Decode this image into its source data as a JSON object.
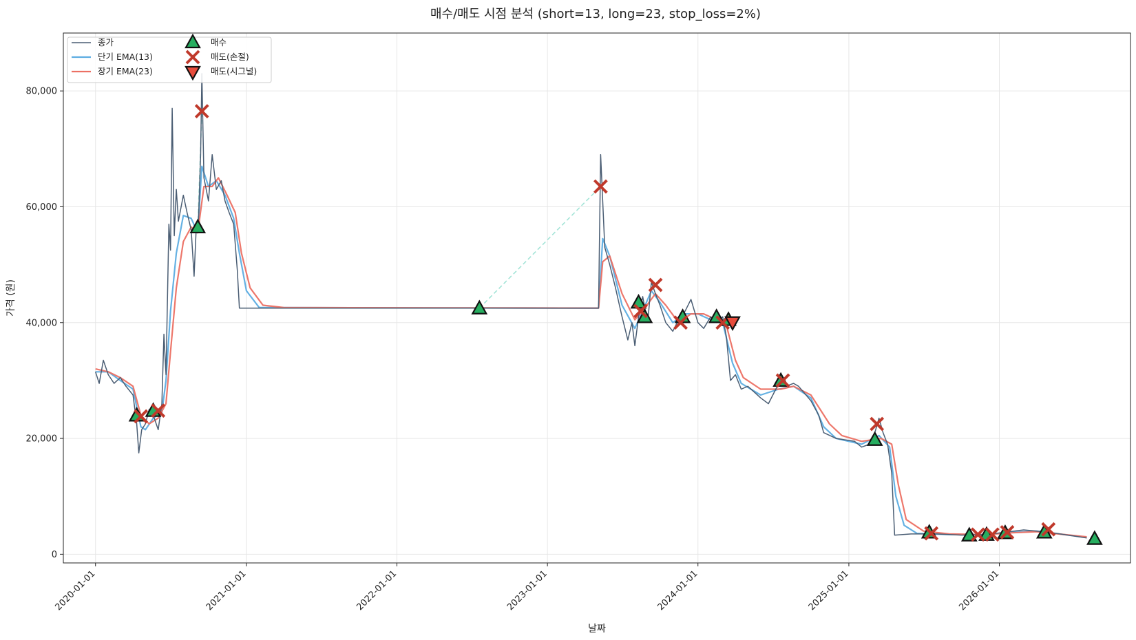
{
  "chart_data": {
    "type": "line",
    "title": "매수/매도 시점 분석 (short=13, long=23, stop_loss=2%)",
    "xlabel": "날짜",
    "ylabel": "가격 (원)",
    "x_range": [
      "2019-10-15",
      "2026-11-15"
    ],
    "ylim": [
      -1500,
      90000
    ],
    "y_ticks": [
      0,
      20000,
      40000,
      60000,
      80000
    ],
    "y_tick_labels": [
      "0",
      "20,000",
      "40,000",
      "60,000",
      "80,000"
    ],
    "x_ticks": [
      "2020-01-01",
      "2021-01-01",
      "2022-01-01",
      "2023-01-01",
      "2024-01-01",
      "2025-01-01",
      "2026-01-01"
    ],
    "grid": true,
    "legend_position": "top-left",
    "colors": {
      "close": "#4a5d73",
      "ema_short": "#5dade2",
      "ema_long": "#ec7063",
      "buy": "#27ae60",
      "sell_stop": "#c0392b",
      "sell_signal": "#e74c3c",
      "trade_line": "#a3e4d7"
    },
    "legend": [
      {
        "key": "close",
        "label": "종가"
      },
      {
        "key": "ema_short",
        "label": "단기 EMA(13)"
      },
      {
        "key": "ema_long",
        "label": "장기 EMA(23)"
      },
      {
        "key": "buy",
        "label": "매수"
      },
      {
        "key": "sell_stop",
        "label": "매도(손절)"
      },
      {
        "key": "sell_signal",
        "label": "매도(시그널)"
      }
    ],
    "series": [
      {
        "name": "종가",
        "points": [
          [
            "2020-01-01",
            31500
          ],
          [
            "2020-01-10",
            29500
          ],
          [
            "2020-01-20",
            33500
          ],
          [
            "2020-02-01",
            31000
          ],
          [
            "2020-02-15",
            29500
          ],
          [
            "2020-03-01",
            30500
          ],
          [
            "2020-03-15",
            29000
          ],
          [
            "2020-04-01",
            27500
          ],
          [
            "2020-04-10",
            22500
          ],
          [
            "2020-04-15",
            17500
          ],
          [
            "2020-04-22",
            21500
          ],
          [
            "2020-05-01",
            22500
          ],
          [
            "2020-05-10",
            25000
          ],
          [
            "2020-05-20",
            24000
          ],
          [
            "2020-06-01",
            21500
          ],
          [
            "2020-06-10",
            26000
          ],
          [
            "2020-06-15",
            38000
          ],
          [
            "2020-06-20",
            31000
          ],
          [
            "2020-06-27",
            57000
          ],
          [
            "2020-07-01",
            52500
          ],
          [
            "2020-07-05",
            77000
          ],
          [
            "2020-07-10",
            55000
          ],
          [
            "2020-07-15",
            63000
          ],
          [
            "2020-07-20",
            57500
          ],
          [
            "2020-08-01",
            62000
          ],
          [
            "2020-08-10",
            59000
          ],
          [
            "2020-08-20",
            56000
          ],
          [
            "2020-08-27",
            48000
          ],
          [
            "2020-09-01",
            56000
          ],
          [
            "2020-09-07",
            58000
          ],
          [
            "2020-09-12",
            69000
          ],
          [
            "2020-09-15",
            83000
          ],
          [
            "2020-09-20",
            65000
          ],
          [
            "2020-10-01",
            61000
          ],
          [
            "2020-10-10",
            69000
          ],
          [
            "2020-10-20",
            63000
          ],
          [
            "2020-11-01",
            64500
          ],
          [
            "2020-11-10",
            61000
          ],
          [
            "2020-11-20",
            59000
          ],
          [
            "2020-12-01",
            57000
          ],
          [
            "2020-12-10",
            49000
          ],
          [
            "2020-12-15",
            42500
          ],
          [
            "2023-05-05",
            42500
          ],
          [
            "2023-05-10",
            69000
          ],
          [
            "2023-05-20",
            53000
          ],
          [
            "2023-06-01",
            50000
          ],
          [
            "2023-06-15",
            46000
          ],
          [
            "2023-07-01",
            41000
          ],
          [
            "2023-07-15",
            37000
          ],
          [
            "2023-07-25",
            40000
          ],
          [
            "2023-08-01",
            36000
          ],
          [
            "2023-08-10",
            41000
          ],
          [
            "2023-08-20",
            44500
          ],
          [
            "2023-09-01",
            40000
          ],
          [
            "2023-09-10",
            47000
          ],
          [
            "2023-09-20",
            45000
          ],
          [
            "2023-10-01",
            43000
          ],
          [
            "2023-10-15",
            40000
          ],
          [
            "2023-11-01",
            38500
          ],
          [
            "2023-11-15",
            40500
          ],
          [
            "2023-12-01",
            42000
          ],
          [
            "2023-12-15",
            44000
          ],
          [
            "2024-01-01",
            40000
          ],
          [
            "2024-01-15",
            39000
          ],
          [
            "2024-02-01",
            41000
          ],
          [
            "2024-02-15",
            40000
          ],
          [
            "2024-03-01",
            41000
          ],
          [
            "2024-03-10",
            37500
          ],
          [
            "2024-03-20",
            30000
          ],
          [
            "2024-04-01",
            31000
          ],
          [
            "2024-04-15",
            28500
          ],
          [
            "2024-05-01",
            29000
          ],
          [
            "2024-06-01",
            27000
          ],
          [
            "2024-06-20",
            26000
          ],
          [
            "2024-07-15",
            29500
          ],
          [
            "2024-08-01",
            29000
          ],
          [
            "2024-08-20",
            29500
          ],
          [
            "2024-09-01",
            29000
          ],
          [
            "2024-10-01",
            26500
          ],
          [
            "2024-10-20",
            24000
          ],
          [
            "2024-11-01",
            21000
          ],
          [
            "2024-12-01",
            20000
          ],
          [
            "2025-01-15",
            19500
          ],
          [
            "2025-02-01",
            18500
          ],
          [
            "2025-02-20",
            19000
          ],
          [
            "2025-03-01",
            20000
          ],
          [
            "2025-03-15",
            23500
          ],
          [
            "2025-03-25",
            21000
          ],
          [
            "2025-04-05",
            19000
          ],
          [
            "2025-04-15",
            14000
          ],
          [
            "2025-04-22",
            3300
          ],
          [
            "2025-06-01",
            3500
          ],
          [
            "2025-08-01",
            3500
          ],
          [
            "2025-10-01",
            3300
          ],
          [
            "2025-12-01",
            3400
          ],
          [
            "2026-01-15",
            3800
          ],
          [
            "2026-03-01",
            4200
          ],
          [
            "2026-05-01",
            3800
          ],
          [
            "2026-08-01",
            2800
          ]
        ]
      },
      {
        "name": "단기 EMA(13)",
        "points": [
          [
            "2020-01-01",
            31500
          ],
          [
            "2020-02-01",
            31500
          ],
          [
            "2020-03-01",
            30000
          ],
          [
            "2020-04-01",
            28500
          ],
          [
            "2020-04-20",
            22000
          ],
          [
            "2020-05-01",
            21500
          ],
          [
            "2020-05-20",
            23500
          ],
          [
            "2020-06-10",
            24500
          ],
          [
            "2020-06-20",
            30000
          ],
          [
            "2020-07-01",
            42000
          ],
          [
            "2020-07-15",
            52000
          ],
          [
            "2020-08-01",
            58500
          ],
          [
            "2020-08-20",
            58000
          ],
          [
            "2020-09-05",
            55500
          ],
          [
            "2020-09-15",
            67000
          ],
          [
            "2020-10-01",
            63500
          ],
          [
            "2020-10-20",
            64500
          ],
          [
            "2020-11-10",
            62000
          ],
          [
            "2020-12-01",
            58000
          ],
          [
            "2020-12-15",
            52000
          ],
          [
            "2021-01-01",
            45500
          ],
          [
            "2021-02-01",
            42600
          ],
          [
            "2023-05-05",
            42500
          ],
          [
            "2023-05-15",
            54500
          ],
          [
            "2023-06-01",
            51500
          ],
          [
            "2023-07-01",
            43000
          ],
          [
            "2023-08-01",
            39000
          ],
          [
            "2023-08-20",
            42000
          ],
          [
            "2023-09-10",
            45500
          ],
          [
            "2023-10-01",
            43500
          ],
          [
            "2023-11-01",
            40000
          ],
          [
            "2023-12-01",
            41500
          ],
          [
            "2024-01-01",
            41500
          ],
          [
            "2024-02-01",
            40500
          ],
          [
            "2024-03-01",
            40000
          ],
          [
            "2024-03-25",
            33000
          ],
          [
            "2024-04-15",
            29500
          ],
          [
            "2024-06-01",
            27500
          ],
          [
            "2024-07-15",
            28500
          ],
          [
            "2024-08-20",
            29000
          ],
          [
            "2024-10-01",
            27000
          ],
          [
            "2024-11-01",
            22000
          ],
          [
            "2024-12-01",
            20000
          ],
          [
            "2025-02-01",
            19000
          ],
          [
            "2025-03-15",
            20500
          ],
          [
            "2025-04-10",
            18500
          ],
          [
            "2025-04-25",
            10000
          ],
          [
            "2025-05-15",
            5000
          ],
          [
            "2025-06-15",
            3600
          ],
          [
            "2025-09-01",
            3400
          ],
          [
            "2025-12-01",
            3400
          ],
          [
            "2026-02-01",
            3800
          ],
          [
            "2026-04-01",
            4000
          ],
          [
            "2026-08-01",
            2900
          ]
        ]
      },
      {
        "name": "장기 EMA(23)",
        "points": [
          [
            "2020-01-01",
            32000
          ],
          [
            "2020-02-01",
            31500
          ],
          [
            "2020-03-01",
            30500
          ],
          [
            "2020-04-01",
            29000
          ],
          [
            "2020-04-20",
            24000
          ],
          [
            "2020-05-10",
            22500
          ],
          [
            "2020-06-01",
            23500
          ],
          [
            "2020-06-20",
            26000
          ],
          [
            "2020-07-01",
            35000
          ],
          [
            "2020-07-15",
            46000
          ],
          [
            "2020-08-01",
            54000
          ],
          [
            "2020-08-20",
            56500
          ],
          [
            "2020-09-05",
            55500
          ],
          [
            "2020-09-20",
            63500
          ],
          [
            "2020-10-10",
            63500
          ],
          [
            "2020-10-25",
            65000
          ],
          [
            "2020-11-15",
            62000
          ],
          [
            "2020-12-05",
            59000
          ],
          [
            "2020-12-20",
            52000
          ],
          [
            "2021-01-10",
            46000
          ],
          [
            "2021-02-10",
            43000
          ],
          [
            "2021-04-01",
            42600
          ],
          [
            "2023-05-05",
            42500
          ],
          [
            "2023-05-15",
            50500
          ],
          [
            "2023-06-01",
            51500
          ],
          [
            "2023-07-01",
            45000
          ],
          [
            "2023-08-01",
            40500
          ],
          [
            "2023-08-20",
            42000
          ],
          [
            "2023-09-20",
            45000
          ],
          [
            "2023-10-15",
            43000
          ],
          [
            "2023-11-15",
            40000
          ],
          [
            "2023-12-15",
            41500
          ],
          [
            "2024-01-15",
            41500
          ],
          [
            "2024-02-15",
            40500
          ],
          [
            "2024-03-10",
            39500
          ],
          [
            "2024-04-01",
            33500
          ],
          [
            "2024-04-20",
            30500
          ],
          [
            "2024-06-01",
            28500
          ],
          [
            "2024-07-20",
            28500
          ],
          [
            "2024-08-20",
            29000
          ],
          [
            "2024-10-01",
            27500
          ],
          [
            "2024-11-15",
            22500
          ],
          [
            "2024-12-15",
            20500
          ],
          [
            "2025-02-01",
            19500
          ],
          [
            "2025-03-20",
            20000
          ],
          [
            "2025-04-15",
            19000
          ],
          [
            "2025-05-01",
            12000
          ],
          [
            "2025-05-20",
            6000
          ],
          [
            "2025-07-01",
            4000
          ],
          [
            "2025-09-01",
            3500
          ],
          [
            "2025-12-01",
            3400
          ],
          [
            "2026-02-01",
            3700
          ],
          [
            "2026-04-01",
            3900
          ],
          [
            "2026-08-01",
            3000
          ]
        ]
      }
    ],
    "buy_points": [
      [
        "2020-04-10",
        24000
      ],
      [
        "2020-05-20",
        24800
      ],
      [
        "2020-09-05",
        56500
      ],
      [
        "2022-07-20",
        42500
      ],
      [
        "2023-08-10",
        43500
      ],
      [
        "2023-08-25",
        41000
      ],
      [
        "2023-11-25",
        41000
      ],
      [
        "2024-02-15",
        41000
      ],
      [
        "2024-03-15",
        40500
      ],
      [
        "2024-07-20",
        30000
      ],
      [
        "2025-03-05",
        19800
      ],
      [
        "2025-07-15",
        3800
      ],
      [
        "2025-10-20",
        3300
      ],
      [
        "2025-12-01",
        3400
      ],
      [
        "2026-01-15",
        3700
      ],
      [
        "2026-04-20",
        3800
      ],
      [
        "2026-08-20",
        2700
      ]
    ],
    "sell_stop_points": [
      [
        "2020-04-20",
        23800
      ],
      [
        "2020-06-01",
        24800
      ],
      [
        "2020-09-15",
        76500
      ],
      [
        "2023-05-10",
        63500
      ],
      [
        "2023-08-15",
        42000
      ],
      [
        "2023-09-20",
        46500
      ],
      [
        "2023-11-20",
        40000
      ],
      [
        "2024-03-01",
        40000
      ],
      [
        "2024-07-25",
        30000
      ],
      [
        "2025-03-10",
        22500
      ],
      [
        "2025-07-20",
        3600
      ],
      [
        "2025-11-10",
        3400
      ],
      [
        "2025-12-15",
        3400
      ],
      [
        "2026-01-20",
        3800
      ],
      [
        "2026-04-30",
        4300
      ]
    ],
    "sell_signal_points": [
      [
        "2024-03-25",
        40000
      ]
    ],
    "trade_lines": [
      [
        [
          "2020-09-05",
          56500
        ],
        [
          "2020-09-15",
          76500
        ]
      ],
      [
        [
          "2022-07-20",
          42500
        ],
        [
          "2023-05-10",
          63500
        ]
      ]
    ]
  }
}
